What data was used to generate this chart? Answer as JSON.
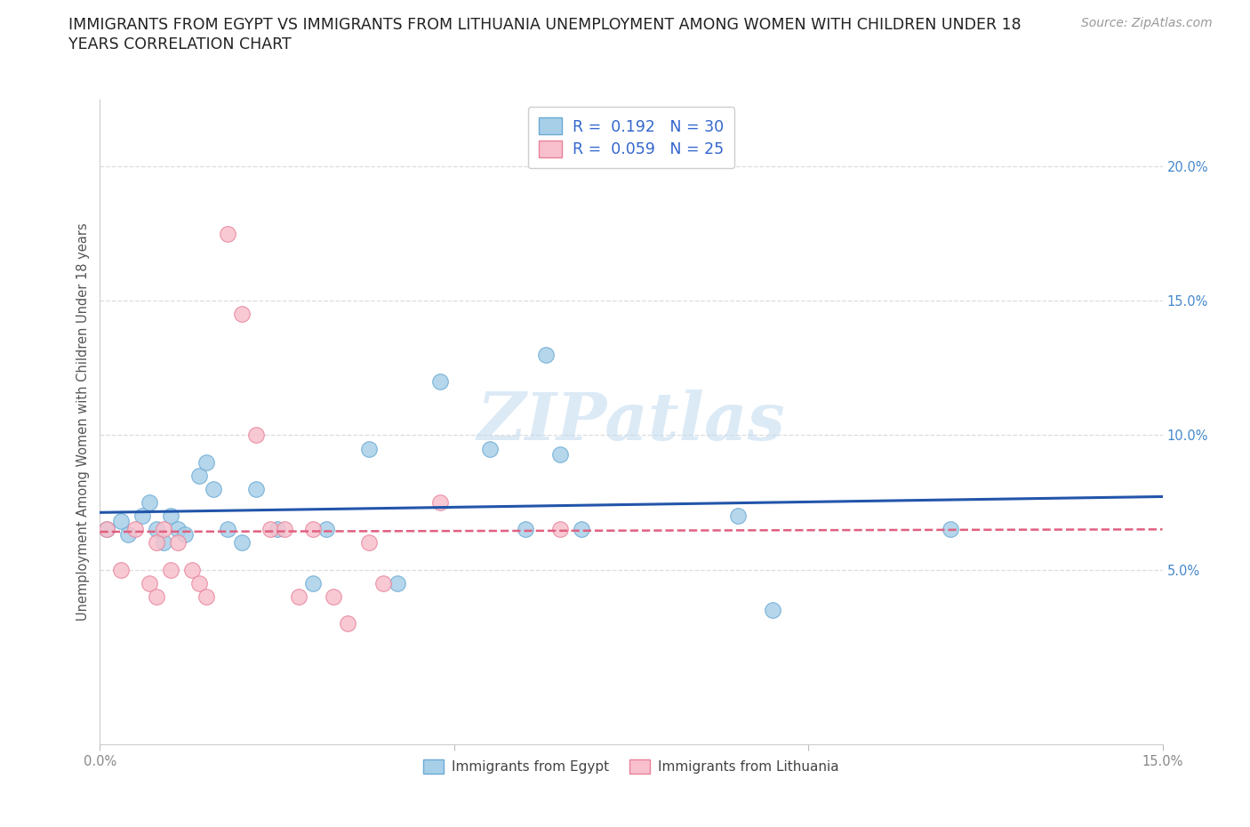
{
  "title_line1": "IMMIGRANTS FROM EGYPT VS IMMIGRANTS FROM LITHUANIA UNEMPLOYMENT AMONG WOMEN WITH CHILDREN UNDER 18",
  "title_line2": "YEARS CORRELATION CHART",
  "source": "Source: ZipAtlas.com",
  "ylabel": "Unemployment Among Women with Children Under 18 years",
  "xlim": [
    0.0,
    0.15
  ],
  "ylim": [
    -0.015,
    0.225
  ],
  "xticks": [
    0.0,
    0.05,
    0.1,
    0.15
  ],
  "xticklabels": [
    "0.0%",
    "",
    "",
    "15.0%"
  ],
  "yticks_right": [
    0.05,
    0.1,
    0.15,
    0.2
  ],
  "yticklabels_right": [
    "5.0%",
    "10.0%",
    "15.0%",
    "20.0%"
  ],
  "egypt_color": "#a8cfe8",
  "egypt_edge": "#6aaad4",
  "lithuania_color": "#f7c0cc",
  "lithuania_edge": "#e8829a",
  "egypt_line_color": "#2255aa",
  "lithuania_line_color": "#e06080",
  "R_egypt": 0.192,
  "N_egypt": 30,
  "R_lithuania": 0.059,
  "N_lithuania": 25,
  "egypt_x": [
    0.001,
    0.003,
    0.004,
    0.006,
    0.007,
    0.008,
    0.009,
    0.01,
    0.011,
    0.012,
    0.014,
    0.015,
    0.016,
    0.018,
    0.02,
    0.022,
    0.025,
    0.03,
    0.032,
    0.038,
    0.042,
    0.048,
    0.055,
    0.06,
    0.063,
    0.065,
    0.068,
    0.09,
    0.095,
    0.12
  ],
  "egypt_y": [
    0.065,
    0.068,
    0.063,
    0.07,
    0.075,
    0.065,
    0.06,
    0.07,
    0.065,
    0.063,
    0.085,
    0.09,
    0.08,
    0.065,
    0.06,
    0.08,
    0.065,
    0.045,
    0.065,
    0.095,
    0.045,
    0.12,
    0.095,
    0.065,
    0.13,
    0.093,
    0.065,
    0.07,
    0.035,
    0.065
  ],
  "lithuania_x": [
    0.001,
    0.003,
    0.005,
    0.007,
    0.008,
    0.008,
    0.009,
    0.01,
    0.011,
    0.013,
    0.014,
    0.015,
    0.018,
    0.02,
    0.022,
    0.024,
    0.026,
    0.028,
    0.03,
    0.033,
    0.035,
    0.038,
    0.04,
    0.048,
    0.065
  ],
  "lithuania_y": [
    0.065,
    0.05,
    0.065,
    0.045,
    0.06,
    0.04,
    0.065,
    0.05,
    0.06,
    0.05,
    0.045,
    0.04,
    0.175,
    0.145,
    0.1,
    0.065,
    0.065,
    0.04,
    0.065,
    0.04,
    0.03,
    0.06,
    0.045,
    0.075,
    0.065
  ],
  "watermark": "ZIPatlas",
  "background_color": "#ffffff",
  "grid_color": "#dddddd",
  "title_fontsize": 12.5,
  "label_fontsize": 10.5,
  "tick_fontsize": 10.5,
  "legend_fontsize": 12.5,
  "source_fontsize": 10,
  "scatter_size": 160,
  "scatter_alpha": 0.85
}
